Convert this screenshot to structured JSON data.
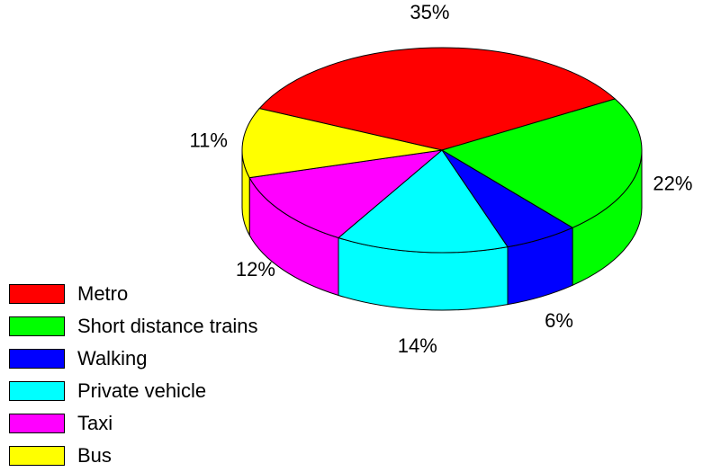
{
  "chart_data": {
    "type": "pie",
    "categories": [
      "Metro",
      "Short distance trains",
      "Walking",
      "Private vehicle",
      "Taxi",
      "Bus"
    ],
    "values": [
      35,
      22,
      6,
      14,
      12,
      11
    ],
    "labels": [
      "35%",
      "22%",
      "6%",
      "14%",
      "12%",
      "11%"
    ],
    "colors": [
      "#ff0000",
      "#00ff00",
      "#0000ff",
      "#00ffff",
      "#ff00ff",
      "#ffff00"
    ],
    "legend_placement": "bottom-left",
    "style": "3d"
  }
}
